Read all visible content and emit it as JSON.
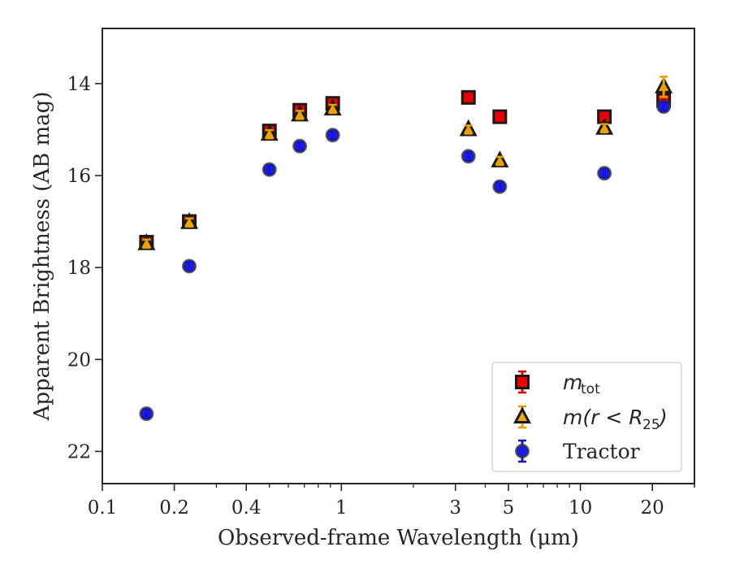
{
  "chart_data": {
    "type": "scatter",
    "xlabel": "Observed-frame Wavelength (μm)",
    "ylabel": "Apparent Brightness (AB mag)",
    "xscale": "log",
    "xlim": [
      0.1,
      30
    ],
    "ylim": [
      22.7,
      12.8
    ],
    "y_inverted": true,
    "xticks": [
      {
        "value": 0.1,
        "label": "0.1"
      },
      {
        "value": 0.2,
        "label": "0.2"
      },
      {
        "value": 0.4,
        "label": "0.4"
      },
      {
        "value": 1,
        "label": "1"
      },
      {
        "value": 3,
        "label": "3"
      },
      {
        "value": 5,
        "label": "5"
      },
      {
        "value": 10,
        "label": "10"
      },
      {
        "value": 20,
        "label": "20"
      }
    ],
    "yticks": [
      {
        "value": 14,
        "label": "14"
      },
      {
        "value": 16,
        "label": "16"
      },
      {
        "value": 18,
        "label": "18"
      },
      {
        "value": 20,
        "label": "20"
      },
      {
        "value": 22,
        "label": "22"
      }
    ],
    "grid": false,
    "legend_position": "lower-right",
    "series": [
      {
        "key": "mtot",
        "legend_base": "m",
        "legend_sub": "tot",
        "marker": "square",
        "face_color": "#ee0000",
        "edge_color": "#1a1a1a",
        "err_color": "#dd0000",
        "points": [
          {
            "x": 0.153,
            "y": 17.45,
            "err": 0.08
          },
          {
            "x": 0.231,
            "y": 17.0,
            "err": 0.05
          },
          {
            "x": 0.5,
            "y": 15.03,
            "err": 0.04
          },
          {
            "x": 0.67,
            "y": 14.58,
            "err": 0.04
          },
          {
            "x": 0.92,
            "y": 14.43,
            "err": 0.04
          },
          {
            "x": 3.4,
            "y": 14.3,
            "err": 0.03
          },
          {
            "x": 4.6,
            "y": 14.72,
            "err": 0.03
          },
          {
            "x": 12.6,
            "y": 14.72,
            "err": 0.04
          },
          {
            "x": 22.3,
            "y": 14.36,
            "err": 0.06
          }
        ]
      },
      {
        "key": "m_r_lt_R25",
        "legend_text": "m(r < R",
        "legend_sub": "25",
        "legend_tail": ")",
        "marker": "triangle",
        "face_color": "#f0a500",
        "edge_color": "#1a1a1a",
        "err_color": "#e8a000",
        "points": [
          {
            "x": 0.153,
            "y": 17.48,
            "err": 0.06
          },
          {
            "x": 0.231,
            "y": 17.02,
            "err": 0.05
          },
          {
            "x": 0.5,
            "y": 15.1,
            "err": 0.04
          },
          {
            "x": 0.67,
            "y": 14.68,
            "err": 0.04
          },
          {
            "x": 0.92,
            "y": 14.55,
            "err": 0.04
          },
          {
            "x": 3.4,
            "y": 15.0,
            "err": 0.03
          },
          {
            "x": 4.6,
            "y": 15.68,
            "err": 0.03
          },
          {
            "x": 12.6,
            "y": 14.97,
            "err": 0.04
          },
          {
            "x": 22.3,
            "y": 14.07,
            "err": 0.22
          }
        ]
      },
      {
        "key": "tractor",
        "legend_text": "Tractor",
        "marker": "circle",
        "face_color": "#1a1aee",
        "edge_color": "#333333",
        "err_color": "#1515d0",
        "points": [
          {
            "x": 0.153,
            "y": 21.18,
            "err": 0.06
          },
          {
            "x": 0.231,
            "y": 17.97,
            "err": 0.05
          },
          {
            "x": 0.5,
            "y": 15.87,
            "err": 0.04
          },
          {
            "x": 0.67,
            "y": 15.36,
            "err": 0.04
          },
          {
            "x": 0.92,
            "y": 15.12,
            "err": 0.04
          },
          {
            "x": 3.4,
            "y": 15.58,
            "err": 0.03
          },
          {
            "x": 4.6,
            "y": 16.24,
            "err": 0.04
          },
          {
            "x": 12.6,
            "y": 15.95,
            "err": 0.04
          },
          {
            "x": 22.3,
            "y": 14.5,
            "err": 0.06
          }
        ]
      }
    ]
  }
}
